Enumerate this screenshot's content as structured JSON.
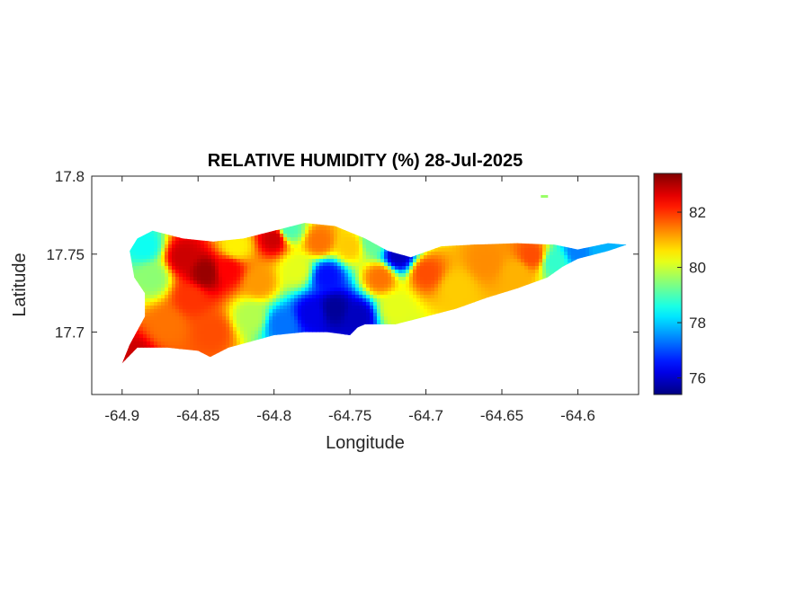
{
  "figure": {
    "title": "RELATIVE HUMIDITY (%) 28-Jul-2025",
    "xlabel": "Longitude",
    "ylabel": "Latitude",
    "background": "#ffffff"
  },
  "chart_data": {
    "type": "heatmap",
    "title": "RELATIVE HUMIDITY (%) 28-Jul-2025",
    "xlabel": "Longitude",
    "ylabel": "Latitude",
    "xlim": [
      -64.92,
      -64.56
    ],
    "ylim": [
      17.66,
      17.8
    ],
    "x_ticks": [
      -64.9,
      -64.85,
      -64.8,
      -64.75,
      -64.7,
      -64.65,
      -64.6
    ],
    "x_tick_labels": [
      "-64.9",
      "-64.85",
      "-64.8",
      "-64.75",
      "-64.7",
      "-64.65",
      "-64.6"
    ],
    "y_ticks": [
      17.7,
      17.75,
      17.8
    ],
    "y_tick_labels": [
      "17.7",
      "17.75",
      "17.8"
    ],
    "grid": false,
    "colormap": "jet",
    "colorbar": {
      "range": [
        75.4,
        83.4
      ],
      "ticks": [
        76,
        78,
        80,
        82
      ],
      "tick_labels": [
        "76",
        "78",
        "80",
        "82"
      ]
    },
    "island_outline": [
      [
        -64.9,
        17.68
      ],
      [
        -64.89,
        17.69
      ],
      [
        -64.87,
        17.69
      ],
      [
        -64.85,
        17.688
      ],
      [
        -64.842,
        17.684
      ],
      [
        -64.83,
        17.69
      ],
      [
        -64.815,
        17.694
      ],
      [
        -64.8,
        17.698
      ],
      [
        -64.78,
        17.7
      ],
      [
        -64.765,
        17.7
      ],
      [
        -64.75,
        17.698
      ],
      [
        -64.745,
        17.703
      ],
      [
        -64.74,
        17.705
      ],
      [
        -64.72,
        17.705
      ],
      [
        -64.7,
        17.71
      ],
      [
        -64.68,
        17.715
      ],
      [
        -64.66,
        17.722
      ],
      [
        -64.64,
        17.728
      ],
      [
        -64.62,
        17.735
      ],
      [
        -64.61,
        17.742
      ],
      [
        -64.6,
        17.747
      ],
      [
        -64.58,
        17.752
      ],
      [
        -64.568,
        17.756
      ],
      [
        -64.58,
        17.757
      ],
      [
        -64.6,
        17.753
      ],
      [
        -64.615,
        17.756
      ],
      [
        -64.64,
        17.757
      ],
      [
        -64.67,
        17.756
      ],
      [
        -64.69,
        17.755
      ],
      [
        -64.71,
        17.748
      ],
      [
        -64.725,
        17.752
      ],
      [
        -64.74,
        17.76
      ],
      [
        -64.76,
        17.768
      ],
      [
        -64.78,
        17.77
      ],
      [
        -64.8,
        17.765
      ],
      [
        -64.82,
        17.76
      ],
      [
        -64.84,
        17.758
      ],
      [
        -64.86,
        17.76
      ],
      [
        -64.88,
        17.765
      ],
      [
        -64.89,
        17.76
      ],
      [
        -64.895,
        17.752
      ],
      [
        -64.892,
        17.735
      ],
      [
        -64.885,
        17.725
      ],
      [
        -64.885,
        17.71
      ],
      [
        -64.895,
        17.692
      ],
      [
        -64.9,
        17.68
      ]
    ],
    "islets": [
      {
        "lon": -64.622,
        "lat": 17.787,
        "value": 79.6
      }
    ],
    "points": [
      {
        "lon": -64.845,
        "lat": 17.738,
        "value": 83.2
      },
      {
        "lon": -64.86,
        "lat": 17.748,
        "value": 82.8
      },
      {
        "lon": -64.83,
        "lat": 17.74,
        "value": 82.4
      },
      {
        "lon": -64.855,
        "lat": 17.722,
        "value": 82.0
      },
      {
        "lon": -64.8,
        "lat": 17.76,
        "value": 82.8
      },
      {
        "lon": -64.81,
        "lat": 17.732,
        "value": 81.2
      },
      {
        "lon": -64.88,
        "lat": 17.735,
        "value": 79.5
      },
      {
        "lon": -64.87,
        "lat": 17.705,
        "value": 81.5
      },
      {
        "lon": -64.84,
        "lat": 17.7,
        "value": 81.8
      },
      {
        "lon": -64.893,
        "lat": 17.684,
        "value": 82.8
      },
      {
        "lon": -64.885,
        "lat": 17.755,
        "value": 78.5
      },
      {
        "lon": -64.825,
        "lat": 17.755,
        "value": 80.5
      },
      {
        "lon": -64.785,
        "lat": 17.74,
        "value": 80.2
      },
      {
        "lon": -64.77,
        "lat": 17.758,
        "value": 81.5
      },
      {
        "lon": -64.75,
        "lat": 17.755,
        "value": 80.8
      },
      {
        "lon": -64.765,
        "lat": 17.736,
        "value": 76.5
      },
      {
        "lon": -64.76,
        "lat": 17.715,
        "value": 75.6
      },
      {
        "lon": -64.775,
        "lat": 17.712,
        "value": 76.2
      },
      {
        "lon": -64.745,
        "lat": 17.71,
        "value": 75.9
      },
      {
        "lon": -64.795,
        "lat": 17.705,
        "value": 77.3
      },
      {
        "lon": -64.815,
        "lat": 17.71,
        "value": 79.8
      },
      {
        "lon": -64.79,
        "lat": 17.766,
        "value": 79.0
      },
      {
        "lon": -64.735,
        "lat": 17.758,
        "value": 79.2
      },
      {
        "lon": -64.718,
        "lat": 17.749,
        "value": 75.9
      },
      {
        "lon": -64.73,
        "lat": 17.735,
        "value": 81.5
      },
      {
        "lon": -64.7,
        "lat": 17.738,
        "value": 81.8
      },
      {
        "lon": -64.72,
        "lat": 17.715,
        "value": 80.2
      },
      {
        "lon": -64.68,
        "lat": 17.728,
        "value": 80.8
      },
      {
        "lon": -64.66,
        "lat": 17.745,
        "value": 81.3
      },
      {
        "lon": -64.64,
        "lat": 17.738,
        "value": 81.0
      },
      {
        "lon": -64.63,
        "lat": 17.749,
        "value": 81.8
      },
      {
        "lon": -64.615,
        "lat": 17.745,
        "value": 78.8
      },
      {
        "lon": -64.6,
        "lat": 17.752,
        "value": 77.4
      },
      {
        "lon": -64.585,
        "lat": 17.754,
        "value": 77.8
      }
    ]
  }
}
